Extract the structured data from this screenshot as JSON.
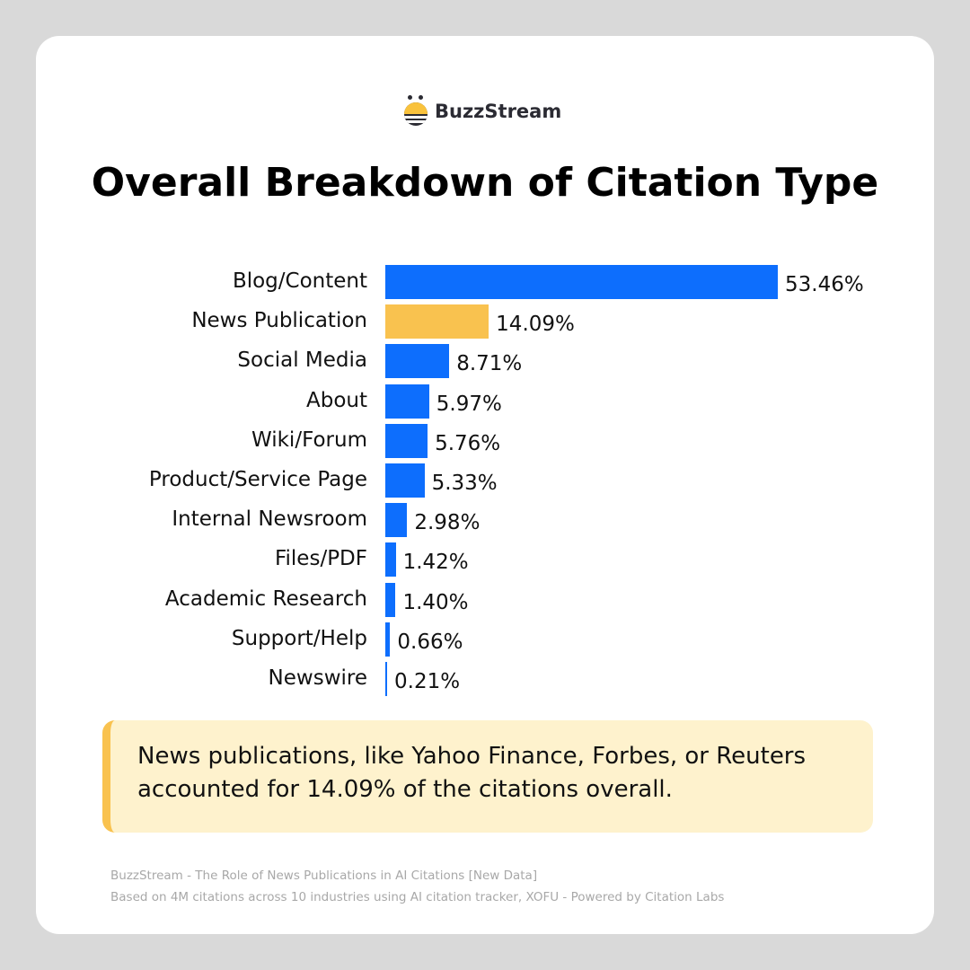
{
  "brand": {
    "name": "BuzzStream",
    "icon": "bee-logo-icon"
  },
  "title": "Overall Breakdown of Citation Type",
  "colors": {
    "primary": "#0d6efd",
    "highlight": "#f9c24f",
    "callout_bg": "#fef2cd",
    "card_bg": "#ffffff",
    "page_bg": "#d9d9d9"
  },
  "chart_data": {
    "type": "bar",
    "orientation": "horizontal",
    "title": "Overall Breakdown of Citation Type",
    "categories": [
      "Blog/Content",
      "News Publication",
      "Social Media",
      "About",
      "Wiki/Forum",
      "Product/Service Page",
      "Internal Newsroom",
      "Files/PDF",
      "Academic Research",
      "Support/Help",
      "Newswire"
    ],
    "values": [
      53.46,
      14.09,
      8.71,
      5.97,
      5.76,
      5.33,
      2.98,
      1.42,
      1.4,
      0.66,
      0.21
    ],
    "labels": [
      "53.46%",
      "14.09%",
      "8.71%",
      "5.97%",
      "5.76%",
      "5.33%",
      "2.98%",
      "1.42%",
      "1.40%",
      "0.66%",
      "0.21%"
    ],
    "highlighted": "News Publication",
    "xlabel": "",
    "ylabel": "",
    "grid": false,
    "legend": null
  },
  "callout": {
    "text": "News publications, like Yahoo Finance, Forbes, or Reuters accounted for 14.09% of the citations overall."
  },
  "footer": {
    "line1": "BuzzStream - The Role of News Publications in AI Citations [New Data]",
    "line2": "Based on 4M citations across 10 industries using AI citation tracker, XOFU - Powered by Citation Labs"
  }
}
